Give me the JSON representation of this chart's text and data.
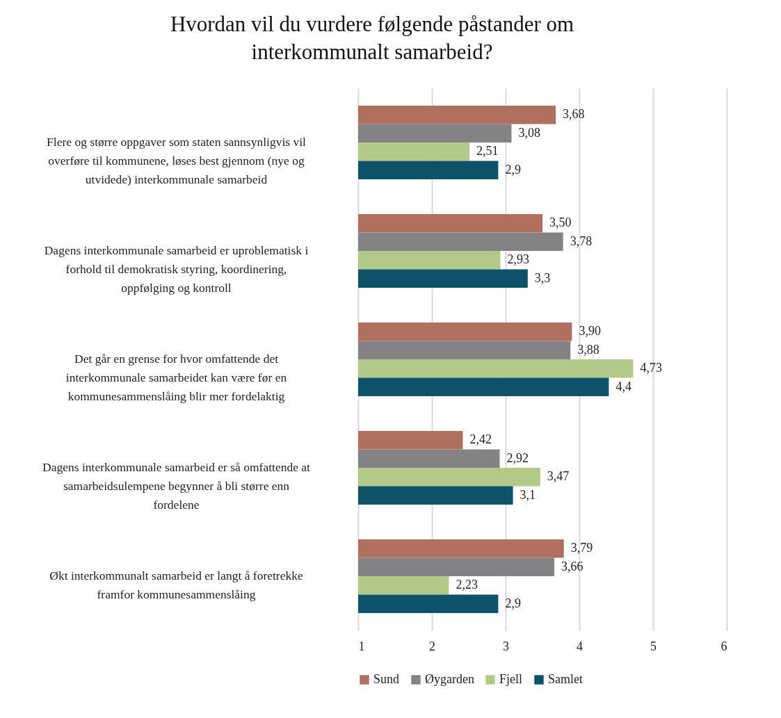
{
  "chart_data": {
    "type": "bar",
    "orientation": "horizontal",
    "title": "Hvordan vil du vurdere følgende påstander om interkommunalt samarbeid?",
    "categories": [
      "Flere og større oppgaver som staten sannsynligvis vil overføre til kommunene, løses best gjennom (nye og utvidede) interkommunale samarbeid",
      "Dagens interkommunale samarbeid er uproblematisk i forhold til demokratisk styring, koordinering, oppfølging og kontroll",
      "Det går en grense for hvor omfattende det interkommunale samarbeidet kan være før en kommunesammenslåing blir mer fordelaktig",
      "Dagens interkommunale samarbeid er så omfattende at samarbeidsulempene begynner å bli større enn fordelene",
      "Økt interkommunalt samarbeid er langt å foretrekke framfor kommunesammenslåing"
    ],
    "series": [
      {
        "name": "Sund",
        "color": "#b07060",
        "values": [
          3.68,
          3.5,
          3.9,
          2.42,
          3.79
        ],
        "value_labels": [
          "3,68",
          "3,50",
          "3,90",
          "2,42",
          "3,79"
        ]
      },
      {
        "name": "Øygarden",
        "color": "#858285",
        "values": [
          3.08,
          3.78,
          3.88,
          2.92,
          3.66
        ],
        "value_labels": [
          "3,08",
          "3,78",
          "3,88",
          "2,92",
          "3,66"
        ]
      },
      {
        "name": "Fjell",
        "color": "#b2c98a",
        "values": [
          2.51,
          2.93,
          4.73,
          3.47,
          2.23
        ],
        "value_labels": [
          "2,51",
          "2,93",
          "4,73",
          "3,47",
          "2,23"
        ]
      },
      {
        "name": "Samlet",
        "color": "#0e526a",
        "values": [
          2.9,
          3.3,
          4.4,
          3.1,
          2.9
        ],
        "value_labels": [
          "2,9",
          "3,3",
          "4,4",
          "3,1",
          "2,9"
        ]
      }
    ],
    "xlim": [
      1,
      6
    ],
    "xticks": [
      1,
      2,
      3,
      4,
      5,
      6
    ],
    "grid": "x",
    "legend": "bottom"
  }
}
